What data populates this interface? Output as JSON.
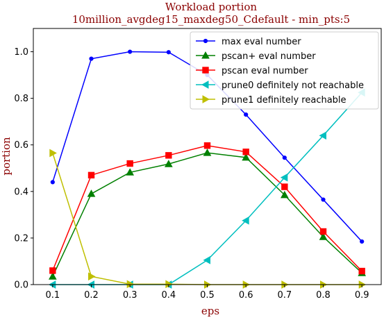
{
  "chart_data": {
    "type": "line",
    "title_line1": "Workload portion",
    "title_line2": "10million_avgdeg15_maxdeg50_Cdefault - min_pts:5",
    "xlabel": "eps",
    "ylabel": "portion",
    "title_color": "#8b0000",
    "xlim": [
      0.05,
      0.95
    ],
    "ylim": [
      0.0,
      1.1
    ],
    "x_ticks": [
      0.1,
      0.2,
      0.3,
      0.4,
      0.5,
      0.6,
      0.7,
      0.8,
      0.9
    ],
    "x_tick_labels": [
      "0.1",
      "0.2",
      "0.3",
      "0.4",
      "0.5",
      "0.6",
      "0.7",
      "0.8",
      "0.9"
    ],
    "y_ticks": [
      0.0,
      0.2,
      0.4,
      0.6,
      0.8,
      1.0
    ],
    "y_tick_labels": [
      "0.0",
      "0.2",
      "0.4",
      "0.6",
      "0.8",
      "1.0"
    ],
    "x": [
      0.1,
      0.2,
      0.3,
      0.4,
      0.5,
      0.6,
      0.7,
      0.8,
      0.9
    ],
    "grid": false,
    "legend_position": "top-right",
    "series": [
      {
        "name": "max eval number",
        "color": "#0000ff",
        "marker": "circle",
        "values": [
          0.44,
          0.97,
          1.0,
          0.998,
          0.9,
          0.73,
          0.545,
          0.365,
          0.185
        ]
      },
      {
        "name": "pscan+ eval number",
        "color": "#008000",
        "marker": "triangle-up",
        "values": [
          0.035,
          0.39,
          0.482,
          0.518,
          0.566,
          0.546,
          0.385,
          0.205,
          0.05
        ]
      },
      {
        "name": "pscan eval number",
        "color": "#ff0000",
        "marker": "square",
        "values": [
          0.06,
          0.47,
          0.52,
          0.555,
          0.597,
          0.57,
          0.42,
          0.228,
          0.058
        ]
      },
      {
        "name": "prune0 definitely not reachable",
        "color": "#00bfbf",
        "marker": "triangle-left",
        "values": [
          0.0,
          0.0,
          0.0,
          0.0,
          0.105,
          0.275,
          0.46,
          0.64,
          0.825
        ]
      },
      {
        "name": "prune1 definitely reachable",
        "color": "#bfbf00",
        "marker": "triangle-right",
        "values": [
          0.565,
          0.035,
          0.002,
          0.002,
          0.0,
          0.0,
          0.0,
          0.0,
          0.0
        ]
      }
    ]
  }
}
